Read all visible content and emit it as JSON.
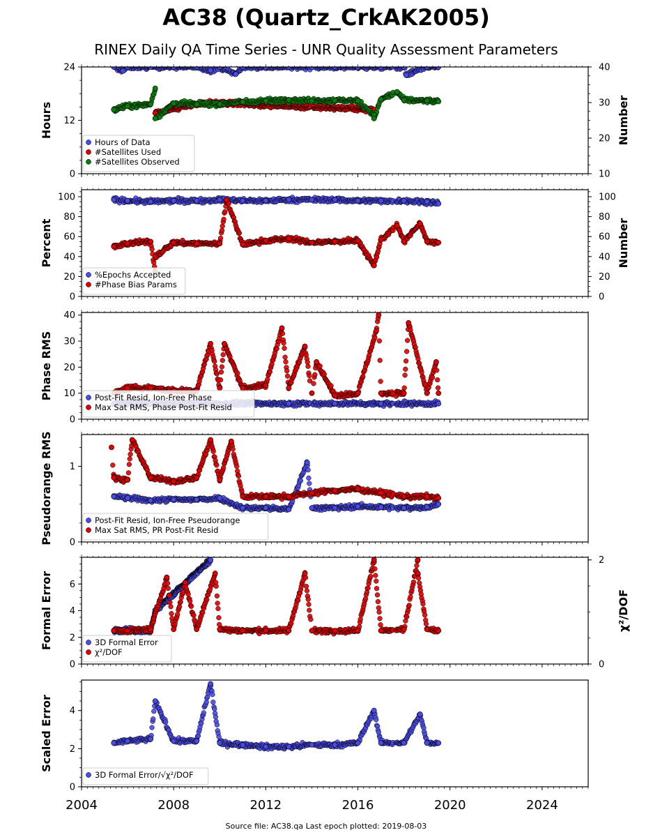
{
  "title": "AC38 (Quartz_CrkAK2005)",
  "subtitle": "RINEX Daily QA Time Series - UNR Quality Assessment Parameters",
  "footer": "Source file: AC38.qa Last epoch plotted: 2019-08-03",
  "colors": {
    "blue": "#4a4ae8",
    "red": "#e00000",
    "green": "#0a7d0a",
    "edge": "#000000"
  },
  "x_axis": {
    "ticks": [
      "2004",
      "2008",
      "2012",
      "2016",
      "2020",
      "2024"
    ],
    "range": [
      2004,
      2026
    ]
  },
  "chart_data": [
    {
      "type": "scatter",
      "ylabel": "Hours",
      "ylabel_right": "Number",
      "ylim": [
        0,
        24
      ],
      "yticks": [
        "0",
        "12",
        "24"
      ],
      "ylim_right": [
        10,
        40
      ],
      "yticks_right": [
        "10",
        "20",
        "30",
        "40"
      ],
      "legend": [
        "Hours of Data",
        "#Satellites Used",
        "#Satellites Observed"
      ],
      "series": [
        {
          "name": "Hours of Data",
          "color": "blue",
          "axis": "left",
          "points": [
            [
              2005.4,
              24
            ],
            [
              2006,
              24
            ],
            [
              2007,
              24
            ],
            [
              2008,
              24
            ],
            [
              2009,
              24
            ],
            [
              2010,
              24
            ],
            [
              2011,
              24
            ],
            [
              2012,
              24
            ],
            [
              2013,
              24
            ],
            [
              2014,
              24
            ],
            [
              2015,
              24
            ],
            [
              2016,
              24
            ],
            [
              2017,
              24
            ],
            [
              2018,
              24
            ],
            [
              2019,
              24
            ],
            [
              2019.5,
              24
            ],
            [
              2005.8,
              23.1
            ],
            [
              2010.7,
              22.4
            ],
            [
              2018.1,
              22.2
            ],
            [
              2009.6,
              23.2
            ]
          ]
        },
        {
          "name": "#Satellites Used",
          "color": "red",
          "axis": "right",
          "points": [
            [
              2007.2,
              27
            ],
            [
              2009.3,
              30
            ],
            [
              2016.7,
              28
            ]
          ]
        },
        {
          "name": "#Satellites Observed",
          "color": "green",
          "axis": "right",
          "points": [
            [
              2005.4,
              28
            ],
            [
              2006,
              29
            ],
            [
              2007,
              29.5
            ],
            [
              2008,
              29.8
            ],
            [
              2009,
              29.5
            ],
            [
              2010,
              29.6
            ],
            [
              2011,
              30.2
            ],
            [
              2012,
              30.5
            ],
            [
              2013,
              30.8
            ],
            [
              2014,
              30.5
            ],
            [
              2015,
              30.6
            ],
            [
              2016,
              30.5
            ],
            [
              2017,
              30.9
            ],
            [
              2018,
              30.7
            ],
            [
              2019,
              30.5
            ],
            [
              2019.5,
              30.3
            ],
            [
              2007.2,
              34
            ],
            [
              2007.2,
              25.5
            ],
            [
              2016.7,
              26.5
            ],
            [
              2016.7,
              25.5
            ],
            [
              2017.7,
              33
            ]
          ]
        }
      ]
    },
    {
      "type": "scatter",
      "ylabel": "Percent",
      "ylabel_right": "Number",
      "ylim": [
        0,
        107
      ],
      "yticks": [
        "0",
        "20",
        "40",
        "60",
        "80",
        "100"
      ],
      "ylim_right": [
        0,
        107
      ],
      "yticks_right": [
        "0",
        "20",
        "40",
        "60",
        "80",
        "100"
      ],
      "legend": [
        "%Epochs Accepted",
        "#Phase Bias Params"
      ],
      "series": [
        {
          "name": "%Epochs Accepted",
          "color": "blue",
          "axis": "left",
          "points": [
            [
              2005.4,
              97
            ],
            [
              2006,
              96
            ],
            [
              2007,
              95
            ],
            [
              2008,
              96
            ],
            [
              2009,
              96
            ],
            [
              2010,
              97
            ],
            [
              2011,
              96
            ],
            [
              2012,
              96
            ],
            [
              2013,
              97
            ],
            [
              2014,
              97
            ],
            [
              2015,
              97
            ],
            [
              2016,
              96
            ],
            [
              2017,
              96
            ],
            [
              2018,
              96
            ],
            [
              2019,
              95
            ],
            [
              2019.5,
              93
            ]
          ]
        },
        {
          "name": "#Phase Bias Params",
          "color": "red",
          "axis": "right",
          "points": [
            [
              2005.4,
              50
            ],
            [
              2006,
              53
            ],
            [
              2007,
              55
            ],
            [
              2008,
              54
            ],
            [
              2009,
              53
            ],
            [
              2010,
              53
            ],
            [
              2011,
              52
            ],
            [
              2012,
              56
            ],
            [
              2013,
              58
            ],
            [
              2014,
              54
            ],
            [
              2015,
              55
            ],
            [
              2016,
              56
            ],
            [
              2017,
              57
            ],
            [
              2018,
              55
            ],
            [
              2019,
              55
            ],
            [
              2019.5,
              54
            ],
            [
              2007.2,
              25
            ],
            [
              2007.2,
              40
            ],
            [
              2010.3,
              97
            ],
            [
              2016.7,
              31
            ],
            [
              2018.7,
              73
            ],
            [
              2017.7,
              71
            ]
          ]
        }
      ]
    },
    {
      "type": "scatter",
      "ylabel": "Phase RMS",
      "ylim": [
        0,
        41
      ],
      "yticks": [
        "0",
        "10",
        "20",
        "30",
        "40"
      ],
      "legend": [
        "Post-Fit Resid, Ion-Free Phase",
        "Max Sat RMS, Phase Post-Fit Resid"
      ],
      "series": [
        {
          "name": "Post-Fit Resid, Ion-Free Phase",
          "color": "blue",
          "axis": "left",
          "points": [
            [
              2005.4,
              6
            ],
            [
              2007,
              6
            ],
            [
              2009,
              6
            ],
            [
              2011,
              6
            ],
            [
              2013,
              6
            ],
            [
              2015,
              6
            ],
            [
              2017,
              6
            ],
            [
              2019.5,
              6
            ]
          ]
        },
        {
          "name": "Max Sat RMS, Phase Post-Fit Resid",
          "color": "red",
          "axis": "left",
          "points": [
            [
              2005.4,
              10
            ],
            [
              2006,
              12
            ],
            [
              2007,
              12
            ],
            [
              2008,
              11
            ],
            [
              2009,
              11
            ],
            [
              2010,
              12
            ],
            [
              2011,
              12
            ],
            [
              2012,
              13
            ],
            [
              2013,
              12
            ],
            [
              2014,
              10
            ],
            [
              2015,
              9
            ],
            [
              2016,
              10
            ],
            [
              2017,
              10
            ],
            [
              2018,
              10
            ],
            [
              2019,
              10
            ],
            [
              2019.5,
              10
            ],
            [
              2012.7,
              35
            ],
            [
              2016.9,
              40
            ],
            [
              2016.8,
              34
            ],
            [
              2018.2,
              37
            ],
            [
              2009.6,
              29
            ],
            [
              2010.2,
              29
            ],
            [
              2013.7,
              28
            ],
            [
              2014.2,
              22
            ],
            [
              2019.4,
              22
            ]
          ]
        }
      ]
    },
    {
      "type": "scatter",
      "ylabel": "Pseudorange RMS",
      "ylim": [
        0,
        1.42
      ],
      "yticks": [
        "0",
        "1"
      ],
      "legend": [
        "Post-Fit Resid, Ion-Free Pseudorange",
        "Max Sat RMS, PR Post-Fit Resid"
      ],
      "series": [
        {
          "name": "Post-Fit Resid, Ion-Free Pseudorange",
          "color": "blue",
          "axis": "left",
          "points": [
            [
              2005.4,
              0.6
            ],
            [
              2006,
              0.58
            ],
            [
              2007,
              0.55
            ],
            [
              2008,
              0.56
            ],
            [
              2009,
              0.56
            ],
            [
              2010,
              0.58
            ],
            [
              2011,
              0.45
            ],
            [
              2012,
              0.45
            ],
            [
              2013,
              0.43
            ],
            [
              2014,
              0.45
            ],
            [
              2015,
              0.45
            ],
            [
              2016,
              0.47
            ],
            [
              2017,
              0.46
            ],
            [
              2018,
              0.45
            ],
            [
              2019,
              0.46
            ],
            [
              2019.5,
              0.5
            ],
            [
              2013.8,
              1.05
            ]
          ]
        },
        {
          "name": "Max Sat RMS, PR Post-Fit Resid",
          "color": "red",
          "axis": "left",
          "points": [
            [
              2005.4,
              0.85
            ],
            [
              2006,
              0.82
            ],
            [
              2007,
              0.85
            ],
            [
              2008,
              0.8
            ],
            [
              2009,
              0.85
            ],
            [
              2010,
              0.82
            ],
            [
              2011,
              0.6
            ],
            [
              2012,
              0.6
            ],
            [
              2013,
              0.6
            ],
            [
              2014,
              0.65
            ],
            [
              2015,
              0.68
            ],
            [
              2016,
              0.7
            ],
            [
              2017,
              0.65
            ],
            [
              2018,
              0.6
            ],
            [
              2019,
              0.6
            ],
            [
              2019.5,
              0.58
            ],
            [
              2006.2,
              1.35
            ],
            [
              2009.6,
              1.35
            ],
            [
              2010.5,
              1.33
            ],
            [
              2005.3,
              1.25
            ]
          ]
        }
      ]
    },
    {
      "type": "scatter",
      "ylabel": "Formal Error",
      "ylabel_right": "χ²/DOF",
      "ylim": [
        0,
        8
      ],
      "yticks": [
        "0",
        "2",
        "4",
        "6"
      ],
      "ylim_right": [
        0,
        2.05
      ],
      "yticks_right": [
        "0",
        "2"
      ],
      "legend": [
        "3D Formal Error",
        "χ²/DOF"
      ],
      "series": [
        {
          "name": "3D Formal Error",
          "color": "blue",
          "axis": "left",
          "points": [
            [
              2005.4,
              2.5
            ],
            [
              2006,
              2.5
            ],
            [
              2007,
              2.5
            ],
            [
              2009.6,
              7.8
            ],
            [
              2007.2,
              4
            ]
          ]
        },
        {
          "name": "χ²/DOF",
          "color": "red",
          "axis": "left",
          "points": [
            [
              2005.4,
              2.5
            ],
            [
              2006,
              2.5
            ],
            [
              2007,
              2.6
            ],
            [
              2008,
              2.6
            ],
            [
              2009,
              2.6
            ],
            [
              2010,
              2.6
            ],
            [
              2011,
              2.5
            ],
            [
              2012,
              2.5
            ],
            [
              2013,
              2.5
            ],
            [
              2014,
              2.5
            ],
            [
              2015,
              2.5
            ],
            [
              2016,
              2.5
            ],
            [
              2017,
              2.5
            ],
            [
              2018,
              2.6
            ],
            [
              2019,
              2.6
            ],
            [
              2019.5,
              2.5
            ],
            [
              2016.7,
              7.8
            ],
            [
              2018.6,
              7.8
            ],
            [
              2009.8,
              6.8
            ],
            [
              2013.7,
              6.8
            ],
            [
              2007.7,
              6.5
            ],
            [
              2008.5,
              6.1
            ],
            [
              2018.6,
              6.8
            ]
          ]
        }
      ]
    },
    {
      "type": "scatter",
      "ylabel": "Scaled Error",
      "ylim": [
        0,
        5.6
      ],
      "yticks": [
        "0",
        "2",
        "4"
      ],
      "legend": [
        "3D Formal Error/√χ²/DOF"
      ],
      "series": [
        {
          "name": "3D Formal Error/√χ²/DOF",
          "color": "blue",
          "axis": "left",
          "points": [
            [
              2005.4,
              2.3
            ],
            [
              2006,
              2.4
            ],
            [
              2007,
              2.5
            ],
            [
              2008,
              2.4
            ],
            [
              2009,
              2.4
            ],
            [
              2010,
              2.3
            ],
            [
              2011,
              2.2
            ],
            [
              2012,
              2.1
            ],
            [
              2013,
              2.1
            ],
            [
              2014,
              2.2
            ],
            [
              2015,
              2.2
            ],
            [
              2016,
              2.3
            ],
            [
              2017,
              2.3
            ],
            [
              2018,
              2.3
            ],
            [
              2019,
              2.3
            ],
            [
              2019.5,
              2.3
            ],
            [
              2009.6,
              5.4
            ],
            [
              2007.2,
              4.5
            ],
            [
              2016.7,
              4
            ],
            [
              2018.7,
              3.8
            ]
          ]
        }
      ]
    }
  ]
}
